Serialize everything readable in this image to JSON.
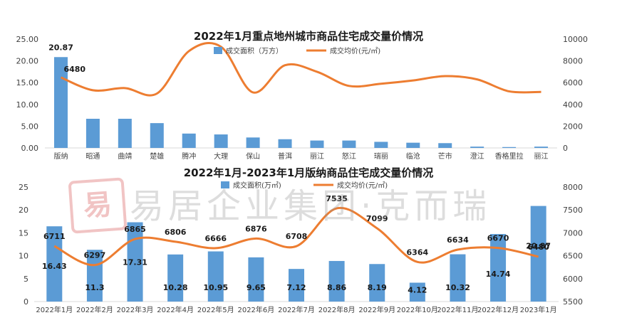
{
  "colors": {
    "bar": "#5b9bd5",
    "line": "#ed7d31",
    "grid": "#d9d9d9",
    "text": "#404040"
  },
  "chart_data": [
    {
      "type": "bar",
      "title": "2022年1月重点地州城市商品住宅成交量价情况",
      "categories": [
        "版纳",
        "昭通",
        "曲靖",
        "楚雄",
        "腾冲",
        "大理",
        "保山",
        "普洱",
        "丽江",
        "怒江",
        "瑞丽",
        "临沧",
        "芒市",
        "澄江",
        "香格里拉",
        "丽江"
      ],
      "series": [
        {
          "name": "成交面积（万方）",
          "axis": "left",
          "values": [
            20.87,
            6.7,
            6.7,
            5.7,
            3.3,
            3.1,
            2.4,
            2.0,
            1.7,
            1.7,
            1.4,
            1.2,
            1.1,
            0.3,
            0.2,
            0.3
          ]
        },
        {
          "name": "成交均价(元/㎡)",
          "axis": "right",
          "type": "line",
          "values": [
            6480,
            5300,
            5500,
            5000,
            8900,
            9300,
            5100,
            7600,
            7000,
            5700,
            5900,
            6200,
            6600,
            6300,
            5200,
            5150
          ]
        }
      ],
      "data_labels": [
        {
          "series": 0,
          "index": 0,
          "text": "20.87"
        },
        {
          "series": 1,
          "index": 0,
          "text": "6480"
        }
      ],
      "y_left": {
        "ticks": [
          "0.00",
          "5.00",
          "10.00",
          "15.00",
          "20.00",
          "25.00"
        ],
        "ylim": [
          0,
          25
        ]
      },
      "y_right": {
        "ticks": [
          "0",
          "2000",
          "4000",
          "6000",
          "8000",
          "10000"
        ],
        "ylim": [
          0,
          10000
        ]
      },
      "legend_position": "top-center"
    },
    {
      "type": "bar",
      "title": "2022年1月-2023年1月版纳商品住宅成交量价情况",
      "categories": [
        "2022年1月",
        "2022年2月",
        "2022年3月",
        "2022年4月",
        "2022年5月",
        "2022年6月",
        "2022年7月",
        "2022年8月",
        "2022年9月",
        "2022年10月",
        "2022年11月",
        "2022年12月",
        "2023年1月"
      ],
      "series": [
        {
          "name": "成交面积(万㎡)",
          "axis": "left",
          "values": [
            16.43,
            11.3,
            17.31,
            10.28,
            10.95,
            9.65,
            7.12,
            8.86,
            8.19,
            4.12,
            10.32,
            14.74,
            20.87
          ],
          "labels": [
            "16.43",
            "11.3",
            "17.31",
            "10.28",
            "10.95",
            "9.65",
            "7.12",
            "8.86",
            "8.19",
            "4.12",
            "10.32",
            "14.74",
            "20.87"
          ]
        },
        {
          "name": "成交均价(元/㎡)",
          "axis": "right",
          "type": "line",
          "values": [
            6711,
            6297,
            6865,
            6806,
            6666,
            6876,
            6708,
            7535,
            7099,
            6364,
            6634,
            6670,
            6480
          ],
          "labels": [
            "6711",
            "6297",
            "6865",
            "6806",
            "6666",
            "6876",
            "6708",
            "7535",
            "7099",
            "6364",
            "6634",
            "6670",
            "6480"
          ]
        }
      ],
      "y_left": {
        "ticks": [
          "0",
          "5",
          "10",
          "15",
          "20",
          "25"
        ],
        "ylim": [
          0,
          25
        ]
      },
      "y_right": {
        "ticks": [
          "5500",
          "6000",
          "6500",
          "7000",
          "7500",
          "8000"
        ],
        "ylim": [
          5500,
          8000
        ]
      },
      "legend_position": "top-center"
    }
  ],
  "watermark": {
    "seal": "易",
    "text": "易居企业集团·克而瑞"
  }
}
